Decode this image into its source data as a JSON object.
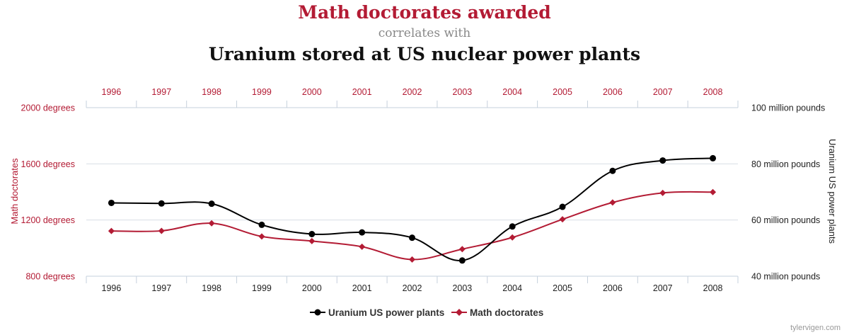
{
  "header": {
    "title": "Math doctorates awarded",
    "connector": "correlates with",
    "subtitle": "Uranium stored at US nuclear power plants"
  },
  "chart_data": {
    "type": "line",
    "x": [
      1996,
      1997,
      1998,
      1999,
      2000,
      2001,
      2002,
      2003,
      2004,
      2005,
      2006,
      2007,
      2008
    ],
    "x_tick_labels": [
      "1996",
      "1997",
      "1998",
      "1999",
      "2000",
      "2001",
      "2002",
      "2003",
      "2004",
      "2005",
      "2006",
      "2007",
      "2008"
    ],
    "y_left": {
      "label": "Math doctorates",
      "range": [
        800,
        2000
      ],
      "ticks": [
        800,
        1200,
        1600,
        2000
      ],
      "tick_labels": [
        "800 degrees",
        "1200 degrees",
        "1600 degrees",
        "2000 degrees"
      ]
    },
    "y_right": {
      "label": "Uranium US power plants",
      "range": [
        40,
        100
      ],
      "ticks": [
        40,
        60,
        80,
        100
      ],
      "tick_labels": [
        "40 million pounds",
        "60 million pounds",
        "80 million pounds",
        "100 million pounds"
      ]
    },
    "series": [
      {
        "name": "Uranium US power plants",
        "axis": "right",
        "color": "#000000",
        "marker": "circle",
        "values": [
          66.1,
          65.9,
          65.8,
          58.3,
          55.0,
          55.6,
          53.7,
          45.6,
          57.7,
          64.7,
          77.5,
          81.2,
          82.0
        ]
      },
      {
        "name": "Math doctorates",
        "axis": "left",
        "color": "#b31b34",
        "marker": "diamond",
        "values": [
          1122,
          1123,
          1177,
          1083,
          1050,
          1010,
          919,
          993,
          1076,
          1205,
          1325,
          1393,
          1399
        ]
      }
    ],
    "grid": true,
    "legend_position": "bottom-center"
  },
  "colors": {
    "accent_red": "#b31b34",
    "gray_text": "#888888",
    "grid": "#d8dee6",
    "axis": "#c6d0dc"
  },
  "credit": "tylervigen.com"
}
